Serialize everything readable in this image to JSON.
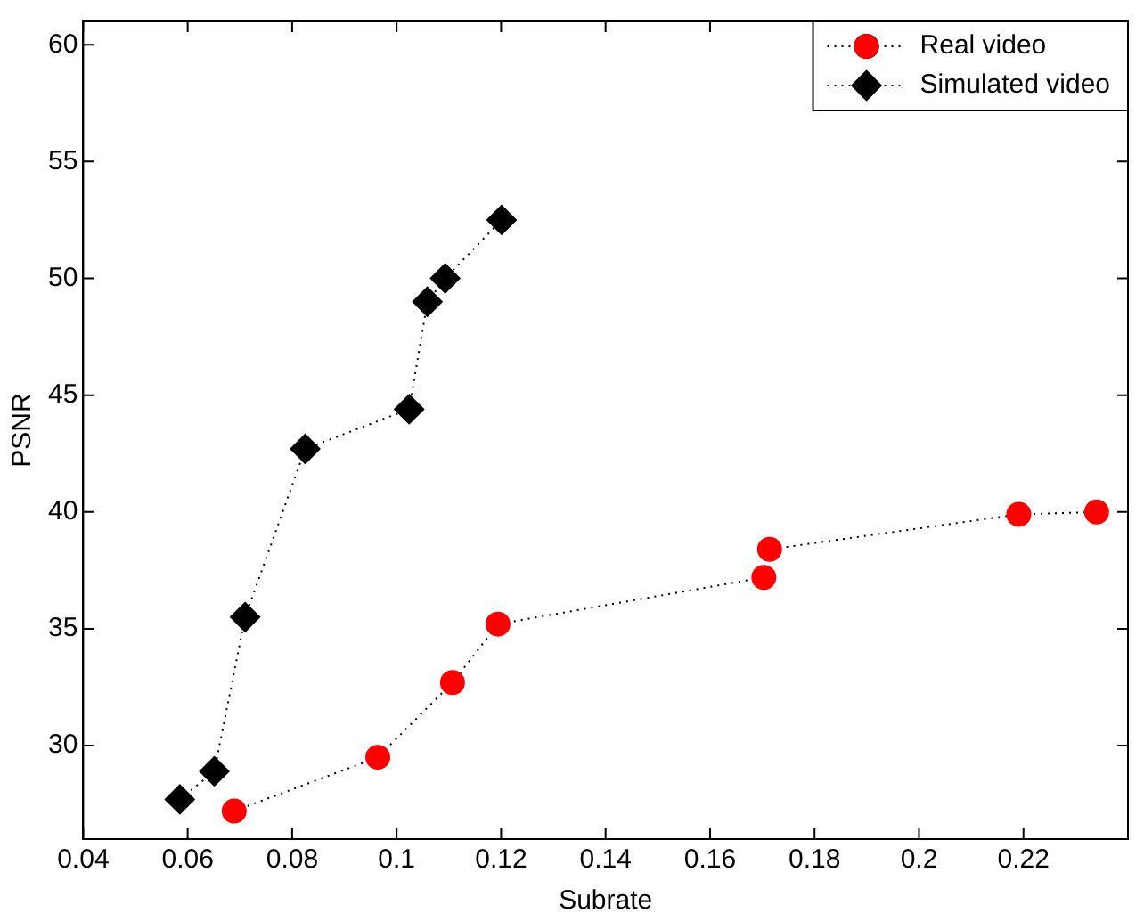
{
  "chart_data": {
    "type": "line",
    "xlabel": "Subrate",
    "ylabel": "PSNR",
    "xlim": [
      0.04,
      0.24
    ],
    "xticks": [
      0.04,
      0.06,
      0.08,
      0.1,
      0.12,
      0.14,
      0.16,
      0.18,
      0.2,
      0.22
    ],
    "ylim": [
      26,
      61
    ],
    "yticks": [
      30,
      35,
      40,
      45,
      50,
      55,
      60
    ],
    "grid": false,
    "legend": "top right",
    "line_style": "dotted",
    "series": [
      {
        "name": "Real video",
        "color": "#ff0000",
        "marker": "circle",
        "x": [
          0.0689,
          0.0964,
          0.1107,
          0.1194,
          0.1703,
          0.1714,
          0.2191,
          0.234
        ],
        "values": [
          27.2,
          29.5,
          32.7,
          35.2,
          37.2,
          38.4,
          39.9,
          40.0
        ]
      },
      {
        "name": "Simulated video",
        "color": "#000000",
        "marker": "diamond",
        "x": [
          0.0585,
          0.0651,
          0.071,
          0.0825,
          0.1024,
          0.1059,
          0.1093,
          0.1201
        ],
        "values": [
          27.7,
          28.9,
          35.5,
          42.7,
          44.4,
          49.0,
          50.0,
          52.5
        ]
      }
    ]
  }
}
